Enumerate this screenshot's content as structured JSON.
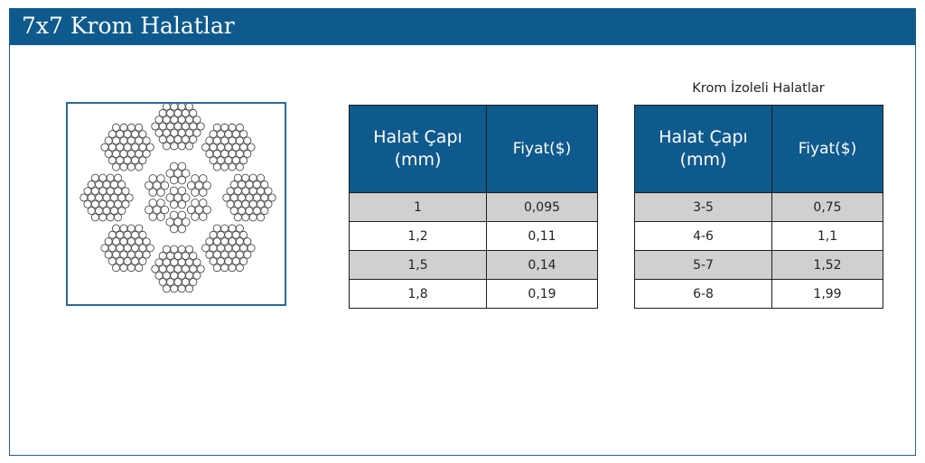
{
  "page": {
    "title": "7x7 Krom Halatlar"
  },
  "colors": {
    "header_bg": "#0f5a8c",
    "row_shade": "#d0d0ce"
  },
  "image": {
    "icon": "rope-cross-section-icon"
  },
  "table_left": {
    "header_diameter_line1": "Halat Çapı",
    "header_diameter_line2": "(mm)",
    "header_price": "Fiyat($)",
    "rows": [
      {
        "diameter": "1",
        "price": "0,095"
      },
      {
        "diameter": "1,2",
        "price": "0,11"
      },
      {
        "diameter": "1,5",
        "price": "0,14"
      },
      {
        "diameter": "1,8",
        "price": "0,19"
      }
    ]
  },
  "table_right": {
    "caption": "Krom İzoleli Halatlar",
    "header_diameter_line1": "Halat Çapı",
    "header_diameter_line2": "(mm)",
    "header_price": "Fiyat($)",
    "rows": [
      {
        "diameter": "3-5",
        "price": "0,75"
      },
      {
        "diameter": "4-6",
        "price": "1,1"
      },
      {
        "diameter": "5-7",
        "price": "1,52"
      },
      {
        "diameter": "6-8",
        "price": "1,99"
      }
    ]
  }
}
